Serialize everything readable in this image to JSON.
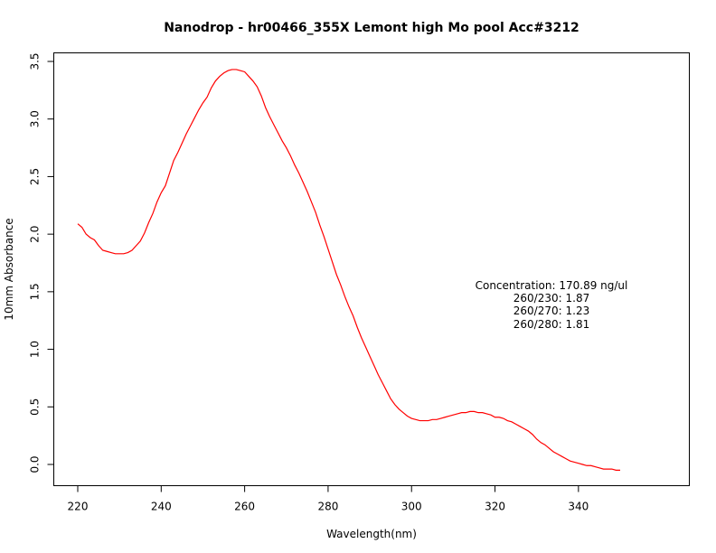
{
  "chart_data": {
    "type": "line",
    "title": "Nanodrop - hr00466_355X Lemont high Mo pool Acc#3212",
    "xlabel": "Wavelength(nm)",
    "ylabel": "10mm Absorbance",
    "xlim": [
      220,
      350
    ],
    "ylim": [
      0.0,
      3.5
    ],
    "xticks": [
      220,
      240,
      260,
      280,
      300,
      320,
      340
    ],
    "yticks": [
      0.0,
      0.5,
      1.0,
      1.5,
      2.0,
      2.5,
      3.0,
      3.5
    ],
    "xtick_labels": [
      "220",
      "240",
      "260",
      "280",
      "300",
      "320",
      "340"
    ],
    "ytick_labels": [
      "0.0",
      "0.5",
      "1.0",
      "1.5",
      "2.0",
      "2.5",
      "3.0",
      "3.5"
    ],
    "grid": false,
    "color": "#ff0000",
    "x": [
      220,
      221,
      222,
      223,
      224,
      225,
      226,
      227,
      228,
      229,
      230,
      231,
      232,
      233,
      234,
      235,
      236,
      237,
      238,
      239,
      240,
      241,
      242,
      243,
      244,
      245,
      246,
      247,
      248,
      249,
      250,
      251,
      252,
      253,
      254,
      255,
      256,
      257,
      258,
      259,
      260,
      261,
      262,
      263,
      264,
      265,
      266,
      267,
      268,
      269,
      270,
      271,
      272,
      273,
      274,
      275,
      276,
      277,
      278,
      279,
      280,
      281,
      282,
      283,
      284,
      285,
      286,
      287,
      288,
      289,
      290,
      291,
      292,
      293,
      294,
      295,
      296,
      297,
      298,
      299,
      300,
      301,
      302,
      303,
      304,
      305,
      306,
      307,
      308,
      309,
      310,
      311,
      312,
      313,
      314,
      315,
      316,
      317,
      318,
      319,
      320,
      321,
      322,
      323,
      324,
      325,
      326,
      327,
      328,
      329,
      330,
      331,
      332,
      333,
      334,
      335,
      336,
      337,
      338,
      339,
      340,
      341,
      342,
      343,
      344,
      345,
      346,
      347,
      348,
      349,
      350
    ],
    "y": [
      2.09,
      2.06,
      2.0,
      1.97,
      1.95,
      1.9,
      1.86,
      1.85,
      1.84,
      1.83,
      1.83,
      1.83,
      1.84,
      1.86,
      1.9,
      1.94,
      2.01,
      2.1,
      2.18,
      2.28,
      2.36,
      2.42,
      2.53,
      2.64,
      2.71,
      2.79,
      2.87,
      2.94,
      3.01,
      3.08,
      3.14,
      3.19,
      3.27,
      3.33,
      3.37,
      3.4,
      3.42,
      3.43,
      3.43,
      3.42,
      3.41,
      3.37,
      3.33,
      3.28,
      3.2,
      3.1,
      3.02,
      2.95,
      2.88,
      2.81,
      2.75,
      2.68,
      2.6,
      2.53,
      2.45,
      2.37,
      2.28,
      2.19,
      2.08,
      1.98,
      1.87,
      1.76,
      1.65,
      1.56,
      1.46,
      1.37,
      1.29,
      1.19,
      1.1,
      1.02,
      0.94,
      0.86,
      0.78,
      0.71,
      0.64,
      0.57,
      0.52,
      0.48,
      0.45,
      0.42,
      0.4,
      0.39,
      0.38,
      0.38,
      0.38,
      0.39,
      0.39,
      0.4,
      0.41,
      0.42,
      0.43,
      0.44,
      0.45,
      0.45,
      0.46,
      0.46,
      0.45,
      0.45,
      0.44,
      0.43,
      0.41,
      0.41,
      0.4,
      0.38,
      0.37,
      0.35,
      0.33,
      0.31,
      0.29,
      0.26,
      0.22,
      0.19,
      0.17,
      0.14,
      0.11,
      0.09,
      0.07,
      0.05,
      0.03,
      0.02,
      0.01,
      0.0,
      -0.01,
      -0.01,
      -0.02,
      -0.03,
      -0.04,
      -0.04,
      -0.04,
      -0.05,
      -0.05
    ],
    "annotation": {
      "lines": [
        "Concentration: 170.89 ng/ul",
        "260/230: 1.87",
        "260/270: 1.23",
        "260/280: 1.81"
      ]
    }
  }
}
